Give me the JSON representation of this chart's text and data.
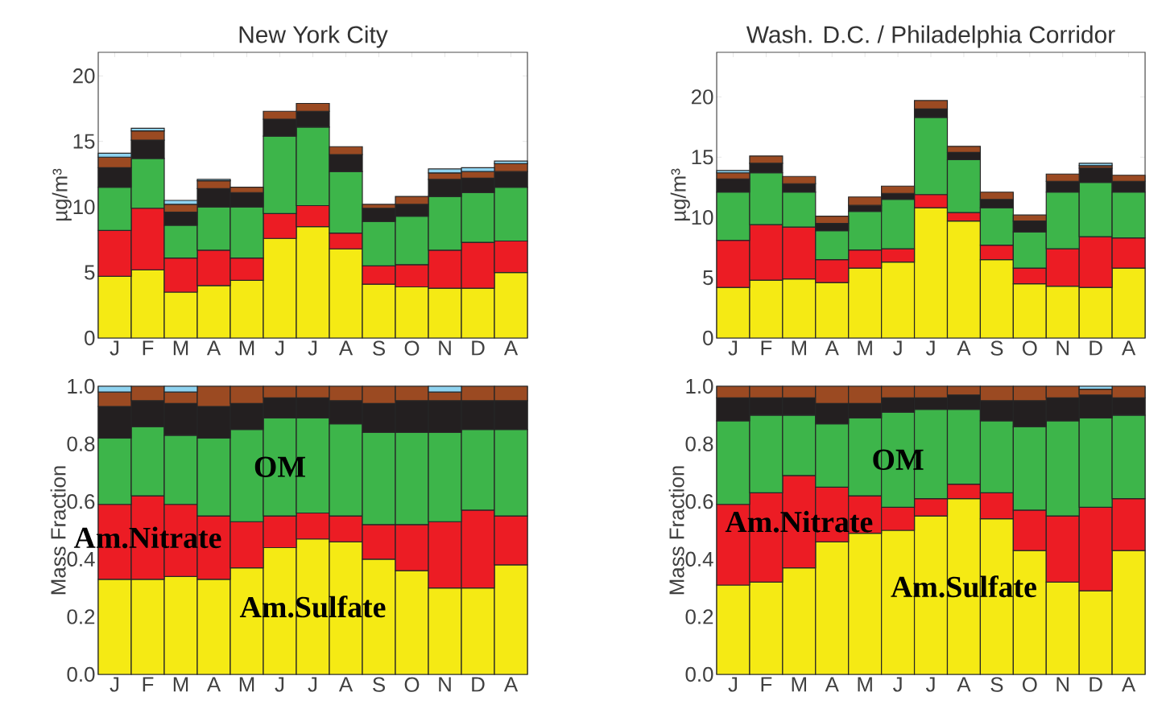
{
  "chart_data": [
    {
      "type": "bar",
      "stacked": true,
      "title": "New York City",
      "ylabel": "µg/m³",
      "categories": [
        "J",
        "F",
        "M",
        "A",
        "M",
        "J",
        "J",
        "A",
        "S",
        "O",
        "N",
        "D",
        "A"
      ],
      "ylim": [
        0,
        21.8
      ],
      "yticks": [
        0,
        5,
        10,
        15,
        20
      ],
      "series": [
        {
          "color": "#f5ea14",
          "values": [
            4.7,
            5.2,
            3.5,
            4.0,
            4.4,
            7.6,
            8.5,
            6.8,
            4.1,
            3.9,
            3.8,
            3.8,
            5.0
          ]
        },
        {
          "color": "#ec1c24",
          "values": [
            3.5,
            4.7,
            2.6,
            2.7,
            1.7,
            1.9,
            1.6,
            1.2,
            1.4,
            1.7,
            2.9,
            3.5,
            2.4
          ]
        },
        {
          "color": "#3db54a",
          "values": [
            3.3,
            3.8,
            2.5,
            3.3,
            3.9,
            5.9,
            6.0,
            4.7,
            3.4,
            3.7,
            4.1,
            3.8,
            4.1
          ]
        },
        {
          "color": "#231f20",
          "values": [
            1.5,
            1.4,
            1.0,
            1.4,
            1.1,
            1.3,
            1.2,
            1.3,
            1.0,
            0.9,
            1.3,
            1.1,
            1.2
          ]
        },
        {
          "color": "#9b4a22",
          "values": [
            0.8,
            0.7,
            0.6,
            0.6,
            0.4,
            0.6,
            0.6,
            0.6,
            0.3,
            0.6,
            0.5,
            0.5,
            0.6
          ]
        },
        {
          "color": "#8fd3f0",
          "values": [
            0.3,
            0.2,
            0.3,
            0.1,
            null,
            null,
            null,
            null,
            null,
            null,
            0.3,
            0.3,
            0.2
          ]
        }
      ]
    },
    {
      "type": "bar",
      "stacked": true,
      "title": "Wash. D.C. / Philadelphia Corridor",
      "ylabel": "µg/m³",
      "categories": [
        "J",
        "F",
        "M",
        "A",
        "M",
        "J",
        "J",
        "A",
        "S",
        "O",
        "N",
        "D",
        "A"
      ],
      "ylim": [
        0,
        23.7
      ],
      "yticks": [
        0,
        5,
        10,
        15,
        20
      ],
      "series": [
        {
          "color": "#f5ea14",
          "values": [
            4.2,
            4.8,
            4.9,
            4.6,
            5.8,
            6.3,
            10.8,
            9.7,
            6.5,
            4.5,
            4.3,
            4.2,
            5.8
          ]
        },
        {
          "color": "#ec1c24",
          "values": [
            3.9,
            4.6,
            4.3,
            1.9,
            1.5,
            1.1,
            1.1,
            0.7,
            1.2,
            1.3,
            3.1,
            4.2,
            2.5
          ]
        },
        {
          "color": "#3db54a",
          "values": [
            4.0,
            4.3,
            2.9,
            2.4,
            3.2,
            4.1,
            6.4,
            4.4,
            3.1,
            3.0,
            4.7,
            4.5,
            3.8
          ]
        },
        {
          "color": "#231f20",
          "values": [
            1.1,
            0.8,
            0.7,
            0.6,
            0.5,
            0.5,
            0.7,
            0.6,
            0.7,
            0.9,
            0.9,
            1.2,
            0.9
          ]
        },
        {
          "color": "#9b4a22",
          "values": [
            0.5,
            0.6,
            0.6,
            0.6,
            0.7,
            0.6,
            0.7,
            0.5,
            0.6,
            0.5,
            0.6,
            0.2,
            0.5
          ]
        },
        {
          "color": "#8fd3f0",
          "values": [
            0.2,
            null,
            null,
            null,
            null,
            null,
            null,
            null,
            null,
            null,
            null,
            0.2,
            null
          ]
        }
      ]
    },
    {
      "type": "bar",
      "stacked": true,
      "ylabel": "Mass Fraction",
      "categories": [
        "J",
        "F",
        "M",
        "A",
        "M",
        "J",
        "J",
        "A",
        "S",
        "O",
        "N",
        "D",
        "A"
      ],
      "ylim": [
        0,
        1.0
      ],
      "yticks": [
        {
          "value": 0,
          "label": "0.0"
        },
        {
          "value": 0.2,
          "label": "0.2"
        },
        {
          "value": 0.4,
          "label": "0.4"
        },
        {
          "value": 0.6,
          "label": "0.6"
        },
        {
          "value": 0.8,
          "label": "0.8"
        },
        {
          "value": 1.0,
          "label": "1.0"
        }
      ],
      "series": [
        {
          "name": "Am.Sulfate",
          "color": "#f5ea14",
          "values": [
            0.33,
            0.33,
            0.34,
            0.33,
            0.37,
            0.44,
            0.47,
            0.46,
            0.4,
            0.36,
            0.3,
            0.3,
            0.38
          ]
        },
        {
          "name": "Am.Nitrate",
          "color": "#ec1c24",
          "values": [
            0.26,
            0.29,
            0.25,
            0.22,
            0.16,
            0.11,
            0.09,
            0.09,
            0.12,
            0.16,
            0.23,
            0.27,
            0.17
          ]
        },
        {
          "name": "OM",
          "color": "#3db54a",
          "values": [
            0.23,
            0.24,
            0.24,
            0.27,
            0.32,
            0.34,
            0.33,
            0.32,
            0.32,
            0.32,
            0.31,
            0.28,
            0.3
          ]
        },
        {
          "color": "#231f20",
          "values": [
            0.11,
            0.09,
            0.11,
            0.11,
            0.09,
            0.07,
            0.07,
            0.08,
            0.1,
            0.11,
            0.11,
            0.1,
            0.1
          ]
        },
        {
          "color": "#9b4a22",
          "values": [
            0.05,
            0.05,
            0.04,
            0.07,
            0.06,
            0.04,
            0.04,
            0.05,
            0.06,
            0.05,
            0.03,
            0.05,
            0.05
          ]
        },
        {
          "color": "#8fd3f0",
          "values": [
            0.02,
            null,
            0.02,
            null,
            null,
            null,
            null,
            null,
            null,
            null,
            0.02,
            null,
            null
          ]
        }
      ]
    },
    {
      "type": "bar",
      "stacked": true,
      "ylabel": "Mass Fraction",
      "categories": [
        "J",
        "F",
        "M",
        "A",
        "M",
        "J",
        "J",
        "A",
        "S",
        "O",
        "N",
        "D",
        "A"
      ],
      "ylim": [
        0,
        1.0
      ],
      "yticks": [
        {
          "value": 0,
          "label": "0.0"
        },
        {
          "value": 0.2,
          "label": "0.2"
        },
        {
          "value": 0.4,
          "label": "0.4"
        },
        {
          "value": 0.6,
          "label": "0.6"
        },
        {
          "value": 0.8,
          "label": "0.8"
        },
        {
          "value": 1.0,
          "label": "1.0"
        }
      ],
      "series": [
        {
          "name": "Am.Sulfate",
          "color": "#f5ea14",
          "values": [
            0.31,
            0.32,
            0.37,
            0.46,
            0.49,
            0.5,
            0.55,
            0.61,
            0.54,
            0.43,
            0.32,
            0.29,
            0.43
          ]
        },
        {
          "name": "Am.Nitrate",
          "color": "#ec1c24",
          "values": [
            0.28,
            0.31,
            0.32,
            0.19,
            0.13,
            0.08,
            0.06,
            0.05,
            0.09,
            0.14,
            0.23,
            0.29,
            0.18
          ]
        },
        {
          "name": "OM",
          "color": "#3db54a",
          "values": [
            0.29,
            0.27,
            0.21,
            0.22,
            0.27,
            0.33,
            0.31,
            0.26,
            0.25,
            0.29,
            0.33,
            0.31,
            0.29
          ]
        },
        {
          "color": "#231f20",
          "values": [
            0.08,
            0.06,
            0.06,
            0.07,
            0.05,
            0.05,
            0.04,
            0.05,
            0.07,
            0.09,
            0.08,
            0.08,
            0.06
          ]
        },
        {
          "color": "#9b4a22",
          "values": [
            0.04,
            0.04,
            0.04,
            0.06,
            0.06,
            0.04,
            0.04,
            0.03,
            0.05,
            0.05,
            0.04,
            0.02,
            0.04
          ]
        },
        {
          "color": "#8fd3f0",
          "values": [
            null,
            null,
            null,
            null,
            null,
            null,
            null,
            null,
            null,
            null,
            null,
            0.01,
            null
          ]
        }
      ]
    }
  ]
}
